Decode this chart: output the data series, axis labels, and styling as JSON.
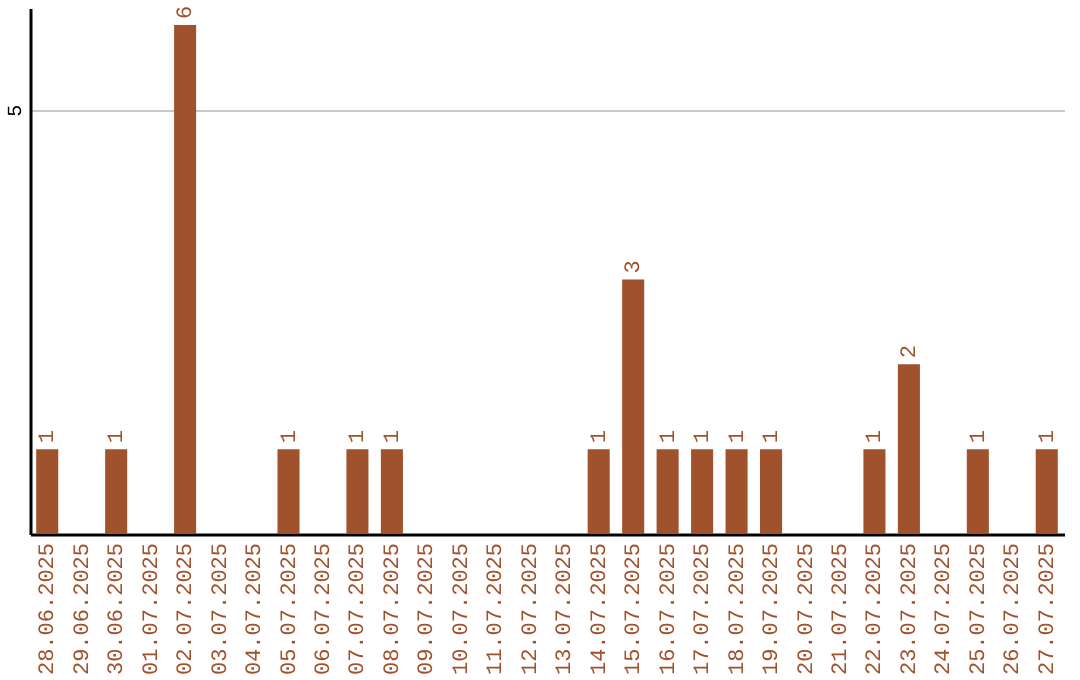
{
  "chart_data": {
    "type": "bar",
    "categories": [
      "28.06.2025",
      "29.06.2025",
      "30.06.2025",
      "01.07.2025",
      "02.07.2025",
      "03.07.2025",
      "04.07.2025",
      "05.07.2025",
      "06.07.2025",
      "07.07.2025",
      "08.07.2025",
      "09.07.2025",
      "10.07.2025",
      "11.07.2025",
      "12.07.2025",
      "13.07.2025",
      "14.07.2025",
      "15.07.2025",
      "16.07.2025",
      "17.07.2025",
      "18.07.2025",
      "19.07.2025",
      "20.07.2025",
      "21.07.2025",
      "22.07.2025",
      "23.07.2025",
      "24.07.2025",
      "25.07.2025",
      "26.07.2025",
      "27.07.2025"
    ],
    "values": [
      1,
      0,
      1,
      0,
      6,
      0,
      0,
      1,
      0,
      1,
      1,
      0,
      0,
      0,
      0,
      0,
      1,
      3,
      1,
      1,
      1,
      1,
      0,
      0,
      1,
      2,
      0,
      1,
      0,
      1
    ],
    "value_labels": [
      "1",
      null,
      "1",
      null,
      "6",
      null,
      null,
      "1",
      null,
      "1",
      "1",
      null,
      null,
      null,
      null,
      null,
      "1",
      "3",
      "1",
      "1",
      "1",
      "1",
      null,
      null,
      "1",
      "2",
      null,
      "1",
      null,
      "1"
    ],
    "color": "#a0522d",
    "ylim": [
      0,
      6.2
    ],
    "yticks": [
      5
    ],
    "grid": "y"
  }
}
